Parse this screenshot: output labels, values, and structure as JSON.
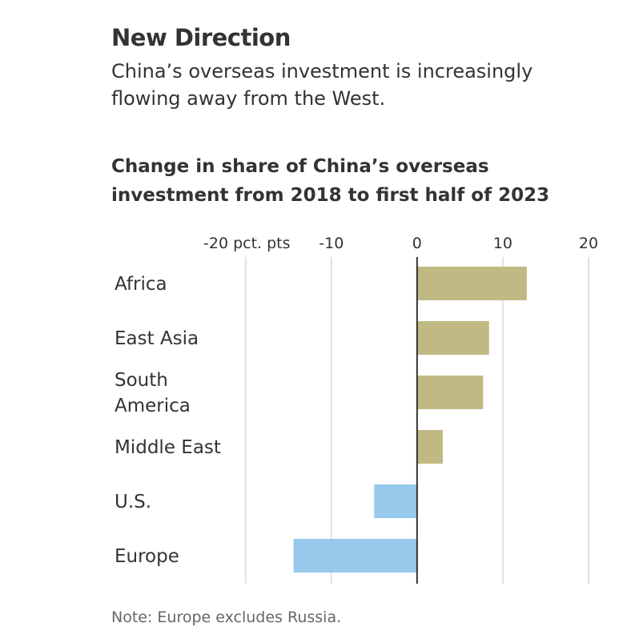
{
  "header": {
    "title": "New Direction",
    "subtitle": "China’s overseas investment is increasingly flowing away from the West."
  },
  "chart_data": {
    "type": "bar",
    "orientation": "horizontal",
    "title": "Change in share of China’s overseas investment from 2018 to first half of 2023",
    "xlabel": "pct. pts",
    "xlim": [
      -20,
      20
    ],
    "ticks": [
      -20,
      -10,
      0,
      10,
      20
    ],
    "tick_labels": [
      "-20 pct. pts",
      "-10",
      "0",
      "10",
      "20"
    ],
    "categories": [
      "Africa",
      "East Asia",
      "South America",
      "Middle East",
      "U.S.",
      "Europe"
    ],
    "category_lines": [
      [
        "Africa"
      ],
      [
        "East Asia"
      ],
      [
        "South",
        "America"
      ],
      [
        "Middle East"
      ],
      [
        "U.S."
      ],
      [
        "Europe"
      ]
    ],
    "values": [
      12.8,
      8.4,
      7.7,
      3.0,
      -5.0,
      -14.4
    ],
    "grid": true,
    "colors": {
      "positive": "#c0b983",
      "negative": "#96c9eb",
      "grid": "#e2e2e2",
      "zero": "#333333"
    }
  },
  "footer": {
    "note": "Note: Europe excludes Russia."
  }
}
